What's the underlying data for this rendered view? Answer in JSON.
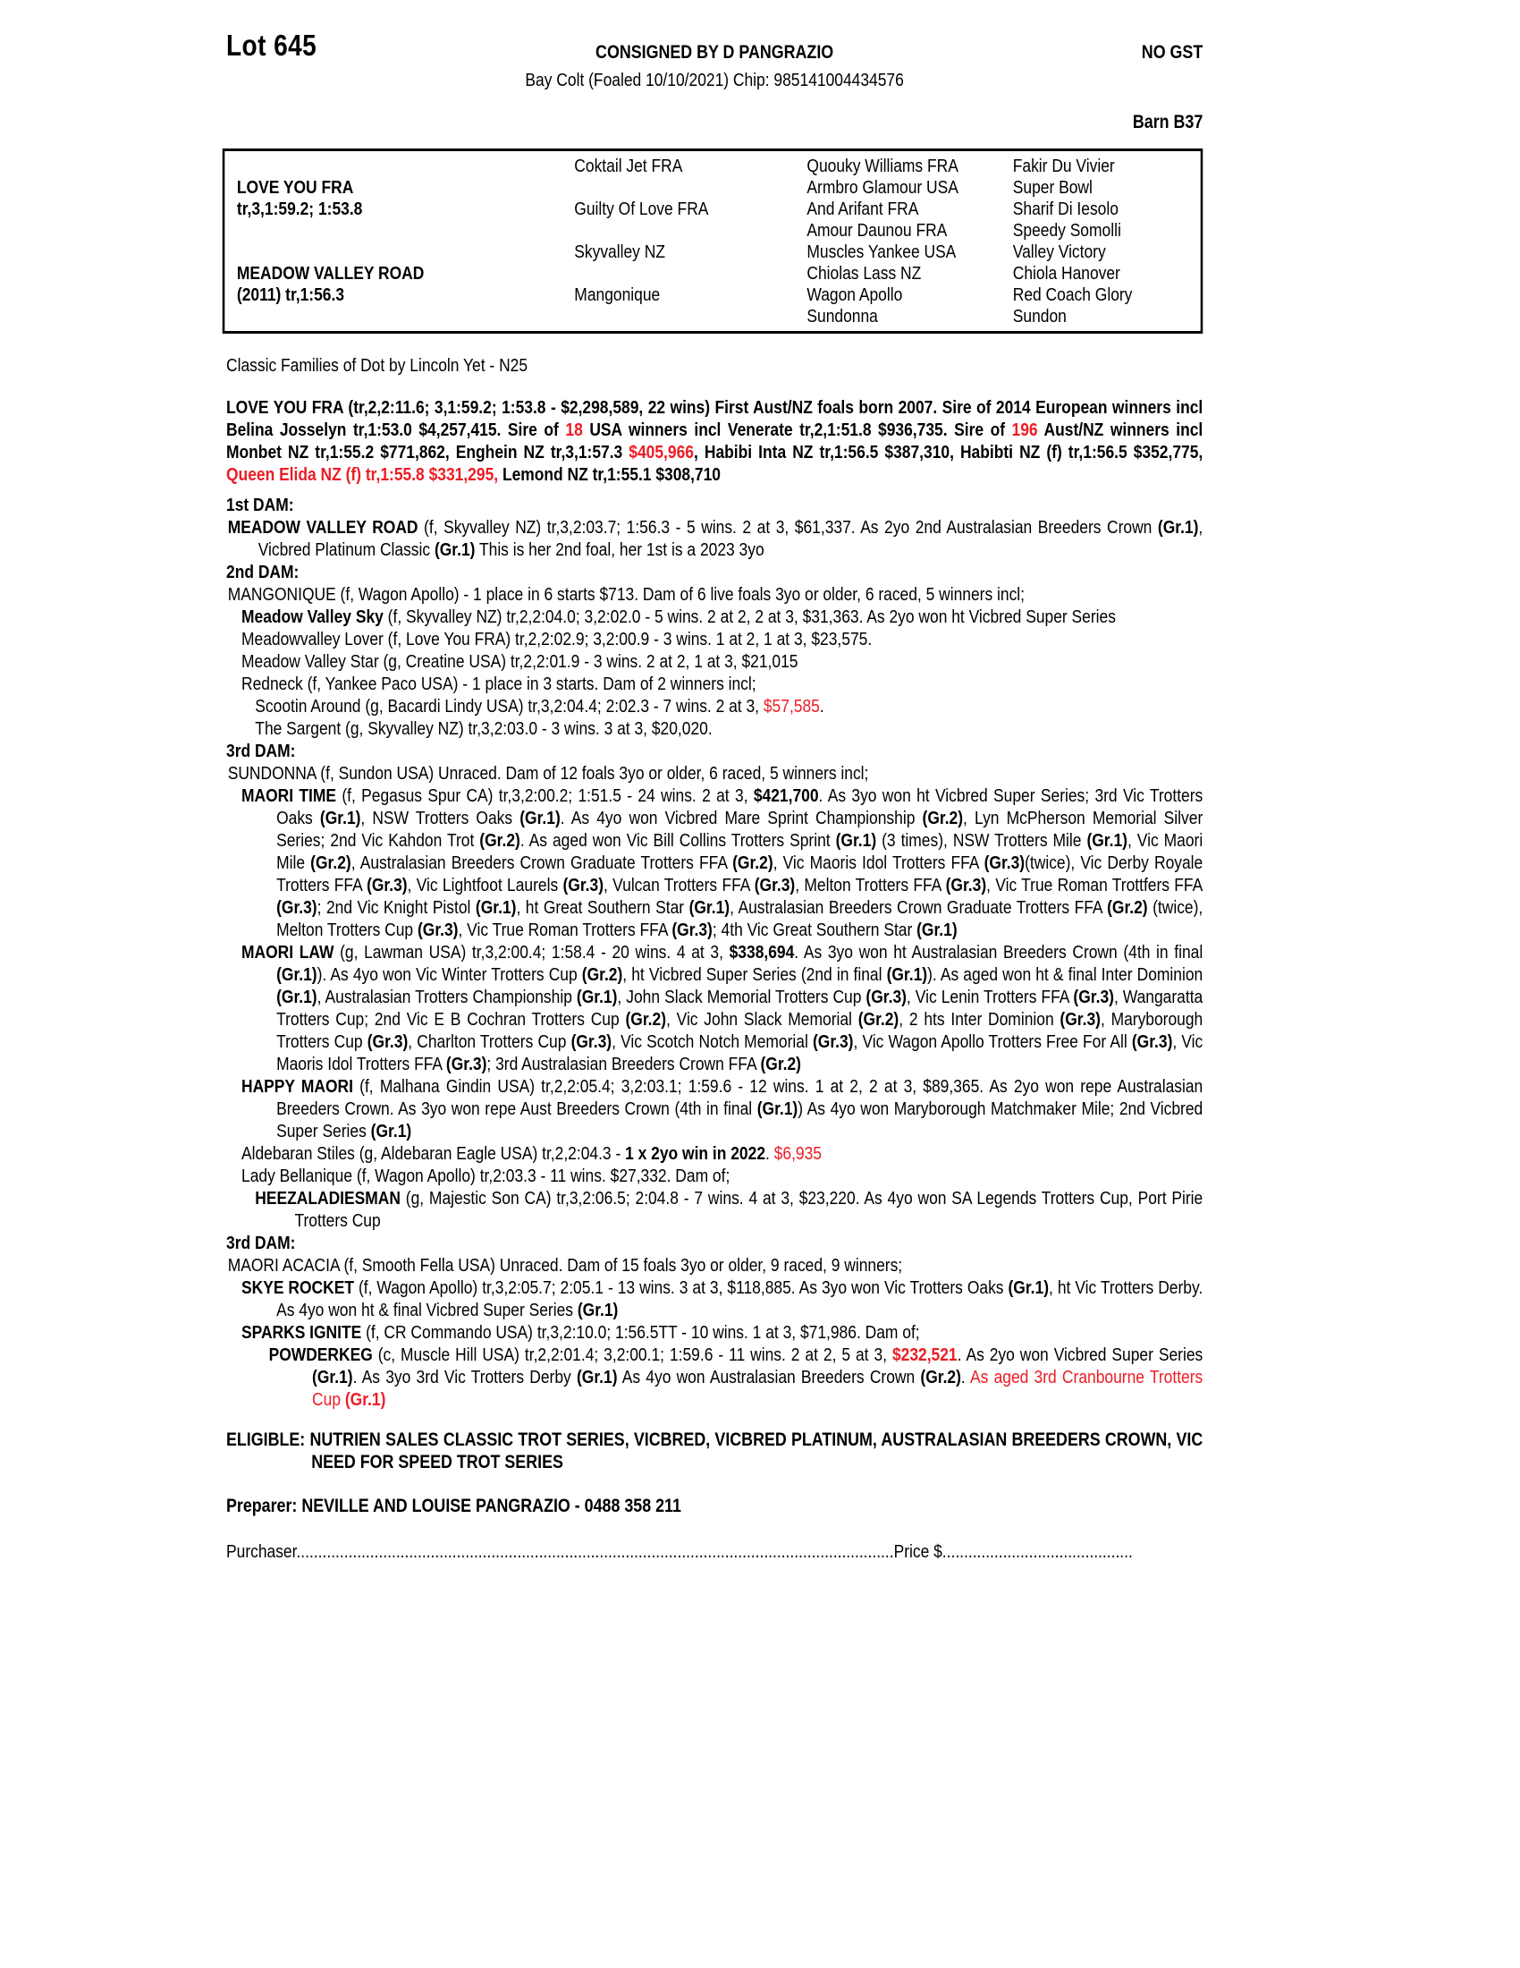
{
  "page": {
    "lot": "Lot 645",
    "consignor": "CONSIGNED BY D PANGRAZIO",
    "gst": "NO GST",
    "description": "Bay Colt (Foaled 10/10/2021) Chip: 985141004434576",
    "barn": "Barn B37",
    "family_line": "Classic Families of Dot by Lincoln Yet - N25",
    "colors": {
      "red": "#ed1c24",
      "black": "#000000"
    }
  },
  "pedigree_table": {
    "columns": [
      {
        "bold": true,
        "cells": [
          "",
          "LOVE YOU FRA",
          "tr,3,1:59.2; 1:53.8",
          "",
          "",
          "MEADOW VALLEY ROAD",
          "(2011) tr,1:56.3",
          ""
        ]
      },
      {
        "bold": false,
        "cells": [
          "Coktail Jet FRA",
          "",
          "Guilty Of Love FRA",
          "",
          "Skyvalley NZ",
          "",
          "Mangonique",
          ""
        ]
      },
      {
        "bold": false,
        "cells": [
          "Quouky Williams FRA",
          "Armbro Glamour USA",
          "And Arifant FRA",
          "Amour Daunou FRA",
          "Muscles Yankee USA",
          "Chiolas Lass NZ",
          "Wagon Apollo",
          "Sundonna"
        ]
      },
      {
        "bold": false,
        "cells": [
          "Fakir Du Vivier",
          "Super Bowl",
          "Sharif Di Iesolo",
          "Speedy Somolli",
          "Valley Victory",
          "Chiola Hanover",
          "Red Coach Glory",
          "Sundon"
        ]
      }
    ]
  },
  "paragraphs": [
    {
      "name": "sire-summary",
      "style": "sire",
      "text": "LOVE YOU FRA (tr,2,2:11.6; 3,1:59.2; 1:53.8 - $2,298,589, 22 wins) First Aust/NZ foals born 2007. Sire of 2014 European winners incl Belina Josselyn tr,1:53.0 $4,257,415. Sire of %%18%% USA winners incl Venerate tr,2,1:51.8 $936,735. Sire of %%196%% Aust/NZ winners incl Monbet NZ tr,1:55.2 $771,862, Enghein NZ tr,3,1:57.3 %%$405,966%%, Habibi Inta NZ tr,1:56.5 $387,310, Habibti NZ (f) tr,1:56.5 $352,775, %%Queen Elida NZ (f) tr,1:55.8 $331,295,%% Lemond NZ tr,1:55.1 $308,710"
    },
    {
      "name": "dam1-heading",
      "style": "head",
      "text": "1st DAM:"
    },
    {
      "name": "dam1-entry",
      "style": "L1",
      "text": "**MEADOW VALLEY ROAD** (f, Skyvalley NZ) tr,3,2:03.7; 1:56.3 - 5 wins. 2 at 3, $61,337. As 2yo 2nd Australasian Breeders Crown **(Gr.1)**, Vicbred Platinum Classic **(Gr.1)** This is her 2nd foal, her 1st is a 2023 3yo"
    },
    {
      "name": "dam2-heading",
      "style": "head",
      "text": "2nd DAM:"
    },
    {
      "name": "dam2-entry",
      "style": "L1",
      "text": "MANGONIQUE (f, Wagon Apollo) - 1 place in 6 starts $713. Dam of 6 live foals 3yo or older, 6 raced, 5 winners incl;"
    },
    {
      "name": "pedigree-entry",
      "style": "L2",
      "text": "**Meadow Valley Sky** (f, Skyvalley NZ) tr,2,2:04.0; 3,2:02.0 - 5 wins. 2 at 2, 2 at 3, $31,363. As 2yo won ht Vicbred Super Series"
    },
    {
      "name": "pedigree-entry",
      "style": "L2",
      "text": "Meadowvalley Lover (f, Love You FRA) tr,2,2:02.9; 3,2:00.9 - 3 wins. 1 at 2, 1 at 3, $23,575."
    },
    {
      "name": "pedigree-entry",
      "style": "L2",
      "text": "Meadow Valley Star (g, Creatine USA) tr,2,2:01.9 - 3 wins. 2 at 2, 1 at 3, $21,015"
    },
    {
      "name": "pedigree-entry",
      "style": "L2",
      "text": "Redneck (f, Yankee Paco USA) - 1 place in 3 starts. Dam of 2 winners incl;"
    },
    {
      "name": "pedigree-entry",
      "style": "L3",
      "text": "Scootin Around (g, Bacardi Lindy USA) tr,3,2:04.4; 2:02.3 - 7 wins. 2 at 3, %%$57,585%%."
    },
    {
      "name": "pedigree-entry",
      "style": "L3",
      "text": "The Sargent (g, Skyvalley NZ) tr,3,2:03.0 - 3 wins. 3 at 3, $20,020."
    },
    {
      "name": "dam3-heading",
      "style": "head",
      "text": "3rd DAM:"
    },
    {
      "name": "dam3-entry",
      "style": "L1",
      "text": "SUNDONNA (f, Sundon USA) Unraced. Dam of 12 foals 3yo or older, 6 raced, 5 winners incl;"
    },
    {
      "name": "pedigree-entry",
      "style": "L2",
      "text": "**MAORI TIME** (f, Pegasus Spur CA) tr,3,2:00.2; 1:51.5 - 24 wins. 2 at 3, **$421,700**. As 3yo won ht Vicbred Super Series; 3rd Vic Trotters Oaks **(Gr.1)**, NSW Trotters Oaks **(Gr.1)**. As 4yo won Vicbred Mare Sprint Championship **(Gr.2)**, Lyn McPherson Memorial Silver Series; 2nd Vic Kahdon Trot **(Gr.2)**. As aged won Vic Bill Collins Trotters Sprint **(Gr.1)** (3 times), NSW Trotters Mile **(Gr.1)**, Vic Maori Mile **(Gr.2)**, Australasian Breeders Crown Graduate Trotters FFA **(Gr.2)**, Vic Maoris Idol Trotters FFA **(Gr.3)**(twice), Vic Derby Royale Trotters FFA **(Gr.3)**, Vic Lightfoot Laurels **(Gr.3)**, Vulcan Trotters FFA **(Gr.3)**, Melton Trotters FFA **(Gr.3)**, Vic True Roman Trottfers FFA **(Gr.3)**; 2nd Vic Knight Pistol **(Gr.1)**, ht Great Southern Star **(Gr.1)**, Australasian Breeders Crown Graduate Trotters FFA **(Gr.2)** (twice), Melton Trotters Cup **(Gr.3)**, Vic True Roman Trotters FFA **(Gr.3)**; 4th Vic Great Southern Star **(Gr.1)**"
    },
    {
      "name": "pedigree-entry",
      "style": "L2",
      "text": "**MAORI LAW** (g, Lawman USA) tr,3,2:00.4; 1:58.4 - 20 wins. 4 at 3, **$338,694**. As 3yo won ht Australasian Breeders Crown (4th in final **(Gr.1)**). As 4yo won Vic Winter Trotters Cup **(Gr.2)**, ht Vicbred Super Series (2nd in final **(Gr.1)**). As aged won ht & final Inter Dominion **(Gr.1)**, Australasian Trotters Championship **(Gr.1)**, John Slack Memorial Trotters Cup **(Gr.3)**, Vic Lenin Trotters FFA **(Gr.3)**, Wangaratta Trotters Cup; 2nd Vic E B Cochran Trotters Cup **(Gr.2)**, Vic John Slack Memorial **(Gr.2)**, 2 hts Inter Dominion **(Gr.3)**, Maryborough Trotters Cup **(Gr.3)**, Charlton Trotters Cup **(Gr.3)**, Vic Scotch Notch Memorial **(Gr.3)**, Vic Wagon Apollo Trotters Free For All **(Gr.3)**, Vic Maoris Idol Trotters FFA **(Gr.3)**; 3rd Australasian Breeders Crown FFA **(Gr.2)**"
    },
    {
      "name": "pedigree-entry",
      "style": "L2",
      "text": "**HAPPY MAORI** (f, Malhana Gindin USA) tr,2,2:05.4; 3,2:03.1; 1:59.6 - 12 wins. 1 at 2, 2 at 3, $89,365. As 2yo won repe Australasian Breeders Crown. As 3yo won repe Aust Breeders Crown (4th in final **(Gr.1)**) As 4yo won Maryborough Matchmaker Mile; 2nd Vicbred Super Series **(Gr.1)**"
    },
    {
      "name": "pedigree-entry",
      "style": "L2",
      "text": "Aldebaran Stiles (g, Aldebaran Eagle USA) tr,2,2:04.3 - **1 x 2yo win in 2022**. %%$6,935%%"
    },
    {
      "name": "pedigree-entry",
      "style": "L2",
      "text": "Lady Bellanique (f, Wagon Apollo) tr,2:03.3 - 11 wins. $27,332. Dam of;"
    },
    {
      "name": "pedigree-entry",
      "style": "L3",
      "text": "**HEEZALADIESMAN** (g, Majestic Son CA) tr,3,2:06.5; 2:04.8 - 7 wins. 4 at 3, $23,220. As 4yo won SA Legends Trotters Cup, Port Pirie Trotters Cup"
    },
    {
      "name": "dam3b-heading",
      "style": "head",
      "text": "3rd DAM:"
    },
    {
      "name": "dam3b-entry",
      "style": "L1",
      "text": "MAORI ACACIA (f, Smooth Fella USA) Unraced. Dam of 15 foals 3yo or older, 9 raced, 9 winners;"
    },
    {
      "name": "pedigree-entry",
      "style": "L2",
      "text": "**SKYE ROCKET** (f, Wagon Apollo) tr,3,2:05.7; 2:05.1 - 13 wins. 3 at 3, $118,885. As 3yo won Vic Trotters Oaks **(Gr.1)**, ht Vic Trotters Derby. As 4yo won ht & final Vicbred Super Series **(Gr.1)**"
    },
    {
      "name": "pedigree-entry",
      "style": "L2",
      "text": "**SPARKS IGNITE** (f, CR Commando USA) tr,3,2:10.0; 1:56.5TT - 10 wins. 1 at 3, $71,986. Dam of;"
    },
    {
      "name": "pedigree-entry",
      "style": "L4",
      "text": "**POWDERKEG** (c, Muscle Hill USA) tr,2,2:01.4; 3,2:00.1; 1:59.6 - 11 wins. 2 at 2, 5 at 3, %%**$232,521**%%. As 2yo won Vicbred Super Series **(Gr.1)**. As 3yo 3rd Vic Trotters Derby **(Gr.1)** As 4yo won Australasian Breeders Crown **(Gr.2)**. %%As aged 3rd Cranbourne Trotters Cup **(Gr.1)**%%"
    },
    {
      "name": "eligible-note",
      "style": "eligible",
      "text": "ELIGIBLE: NUTRIEN SALES CLASSIC TROT SERIES, VICBRED, VICBRED PLATINUM, AUSTRALASIAN BREEDERS CROWN, VIC NEED FOR SPEED TROT SERIES"
    },
    {
      "name": "preparer-line",
      "style": "preparer",
      "text": "Preparer: NEVILLE AND LOUISE PANGRAZIO - 0488 358 211"
    }
  ],
  "footer": {
    "purchaser_label": "Purchaser",
    "purchaser_dots": "..........................................................................................................................................",
    "price_label": "Price $",
    "price_dots": "............................................"
  }
}
